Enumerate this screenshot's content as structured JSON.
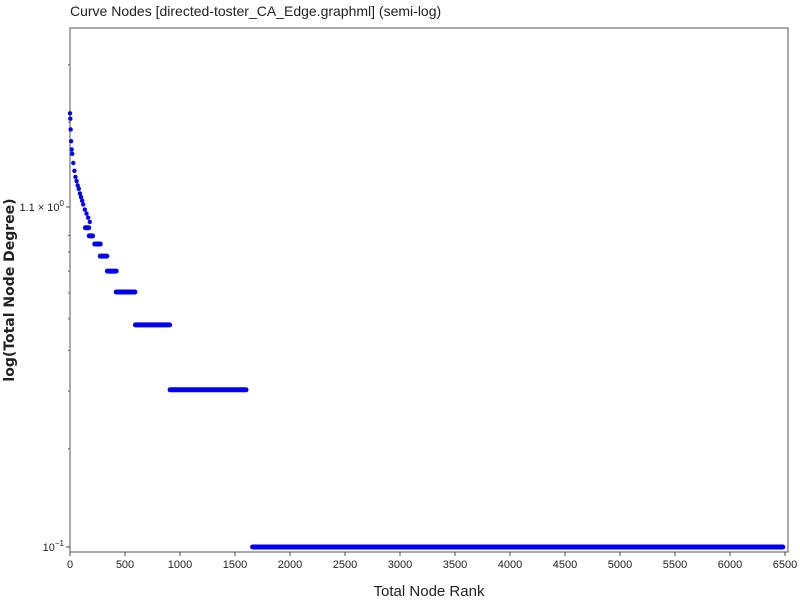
{
  "chart_data": {
    "type": "scatter",
    "title": "Curve Nodes [directed-toster_CA_Edge.graphml] (semi-log)",
    "xlabel": "Total Node Rank",
    "ylabel": "log(Total Node Degree)",
    "xlim": [
      0,
      6500
    ],
    "ylim": [
      0.0965,
      3.9
    ],
    "yscale": "log",
    "grid": false,
    "color": "#0000ee",
    "x_ticks": [
      "0",
      "500",
      "1000",
      "1500",
      "2000",
      "2500",
      "3000",
      "3500",
      "4000",
      "4500",
      "5000",
      "5500",
      "6000",
      "6500"
    ],
    "y_ticks": [
      {
        "value": 0.1,
        "base": "10",
        "exp": "−1",
        "mantissa": ""
      },
      {
        "value": 1.1,
        "base": "10",
        "exp": "0",
        "mantissa": "1.1 × "
      }
    ],
    "points": [
      [
        0,
        2.13
      ],
      [
        3,
        2.05
      ],
      [
        6,
        1.9
      ],
      [
        10,
        1.75
      ],
      [
        15,
        1.65
      ],
      [
        20,
        1.6
      ],
      [
        30,
        1.5
      ],
      [
        40,
        1.42
      ],
      [
        50,
        1.36
      ],
      [
        60,
        1.32
      ],
      [
        70,
        1.28
      ],
      [
        80,
        1.25
      ],
      [
        90,
        1.21
      ],
      [
        100,
        1.18
      ],
      [
        110,
        1.15
      ],
      [
        120,
        1.12
      ],
      [
        135,
        1.08
      ],
      [
        150,
        1.05
      ],
      [
        165,
        1.02
      ],
      [
        180,
        0.99
      ]
    ],
    "steps": [
      {
        "x_start": 140,
        "x_end": 170,
        "y": 0.95
      },
      {
        "x_start": 175,
        "x_end": 205,
        "y": 0.897
      },
      {
        "x_start": 225,
        "x_end": 275,
        "y": 0.847
      },
      {
        "x_start": 275,
        "x_end": 335,
        "y": 0.778
      },
      {
        "x_start": 340,
        "x_end": 420,
        "y": 0.7
      },
      {
        "x_start": 420,
        "x_end": 590,
        "y": 0.604
      },
      {
        "x_start": 595,
        "x_end": 905,
        "y": 0.479
      },
      {
        "x_start": 910,
        "x_end": 1600,
        "y": 0.303
      },
      {
        "x_start": 1660,
        "x_end": 6480,
        "y": 0.1
      }
    ]
  }
}
